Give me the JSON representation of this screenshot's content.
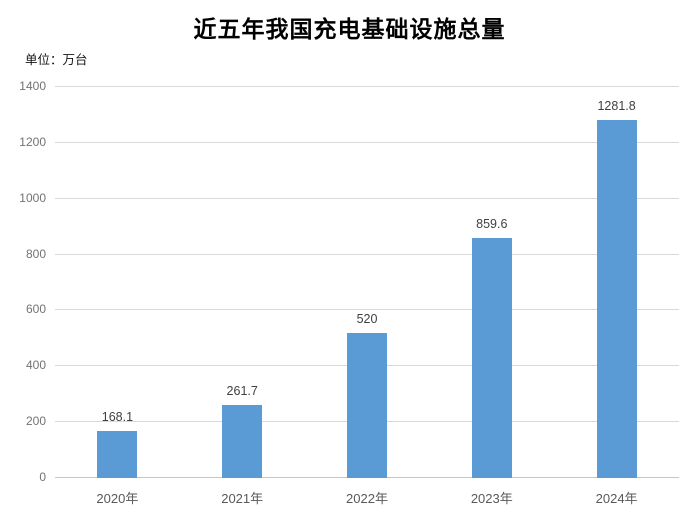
{
  "title": "近五年我国充电基础设施总量",
  "unit_label": "单位：万台",
  "chart_data": {
    "type": "bar",
    "title": "近五年我国充电基础设施总量",
    "subtitle": "",
    "xlabel": "",
    "ylabel": "单位：万台",
    "categories": [
      "2020年",
      "2021年",
      "2022年",
      "2023年",
      "2024年"
    ],
    "values": [
      168.1,
      261.7,
      520,
      859.6,
      1281.8
    ],
    "data_labels": [
      "168.1",
      "261.7",
      "520",
      "859.6",
      "1281.8"
    ],
    "ylim": [
      0,
      1400
    ],
    "yticks": [
      0,
      200,
      400,
      600,
      800,
      1000,
      1200,
      1400
    ],
    "grid": true,
    "legend": false,
    "colors": {
      "bar": "#5b9bd5",
      "gridline": "#d9d9d9",
      "axis_line": "#c6c6c6",
      "y_tick_label": "#737373",
      "x_tick_label": "#595959",
      "data_label": "#3f3f3f",
      "title": "#000000",
      "background": "#ffffff"
    }
  }
}
